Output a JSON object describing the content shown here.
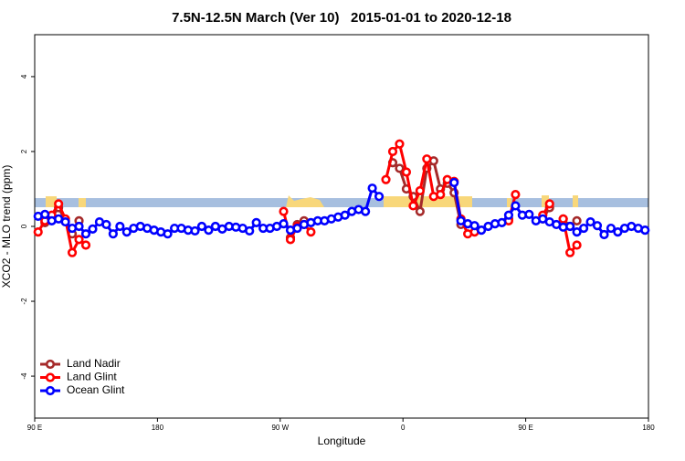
{
  "chart_data": {
    "type": "line",
    "title": "7.5N-12.5N March (Ver 10)   2015-01-01 to 2020-12-18",
    "x_label": "Longitude",
    "y_label": "XCO2 - MLO trend (ppm)",
    "xlim": [
      90,
      540
    ],
    "ylim": [
      -5.12,
      5.12
    ],
    "xticks": [
      {
        "value": 90,
        "label": "90 E"
      },
      180,
      {
        "value": 270,
        "label": "90 W"
      },
      {
        "value": 360,
        "label": "0"
      },
      {
        "value": 450,
        "label": "90 E"
      },
      {
        "value": 540,
        "label": "180"
      }
    ],
    "yticks": [
      -4,
      -2,
      0,
      2,
      4
    ],
    "legend": "bottom-left",
    "x": [
      92.5,
      97.5,
      102.5,
      107.5,
      112.5,
      117.5,
      122.5,
      127.5,
      132.5,
      137.5,
      142.5,
      147.5,
      152.5,
      157.5,
      162.5,
      167.5,
      172.5,
      177.5,
      182.5,
      187.5,
      192.5,
      197.5,
      202.5,
      207.5,
      212.5,
      217.5,
      222.5,
      227.5,
      232.5,
      237.5,
      242.5,
      247.5,
      252.5,
      257.5,
      262.5,
      267.5,
      272.5,
      277.5,
      282.5,
      287.5,
      292.5,
      297.5,
      302.5,
      307.5,
      312.5,
      317.5,
      322.5,
      327.5,
      332.5,
      337.5,
      342.5,
      347.5,
      352.5,
      357.5,
      362.5,
      367.5,
      372.5,
      377.5,
      382.5,
      387.5,
      392.5,
      397.5,
      402.5,
      407.5,
      412.5,
      417.5,
      422.5,
      427.5,
      432.5,
      437.5,
      442.5,
      447.5,
      452.5,
      457.5,
      462.5,
      467.5,
      472.5,
      477.5,
      482.5,
      487.5,
      492.5,
      497.5,
      502.5,
      507.5,
      512.5,
      517.5,
      522.5,
      527.5,
      532.5,
      537.5
    ],
    "series": [
      {
        "name": "Land Nadir",
        "color": "#a52a2a",
        "values": [
          null,
          0.1,
          0.25,
          0.5,
          0.15,
          -0.2,
          0.15,
          null,
          null,
          null,
          null,
          null,
          null,
          null,
          null,
          null,
          null,
          null,
          null,
          null,
          null,
          null,
          null,
          null,
          null,
          null,
          null,
          null,
          null,
          null,
          null,
          null,
          null,
          null,
          null,
          null,
          null,
          -0.3,
          0.05,
          0.15,
          null,
          null,
          null,
          null,
          null,
          null,
          null,
          null,
          null,
          null,
          null,
          null,
          1.7,
          1.55,
          1.0,
          0.8,
          0.4,
          1.55,
          1.75,
          1.0,
          1.15,
          0.9,
          0.05,
          null,
          null,
          null,
          null,
          null,
          null,
          0.2,
          null,
          null,
          null,
          null,
          0.2,
          0.5,
          null,
          0.2,
          0,
          0.15,
          null,
          null,
          null,
          null,
          null,
          null,
          null,
          null,
          null,
          null
        ]
      },
      {
        "name": "Land Glint",
        "color": "#ff0000",
        "values": [
          -0.15,
          0.15,
          0.3,
          0.6,
          0.2,
          -0.7,
          -0.35,
          -0.5,
          null,
          null,
          null,
          null,
          null,
          null,
          null,
          null,
          null,
          null,
          null,
          null,
          null,
          null,
          null,
          null,
          null,
          null,
          null,
          null,
          null,
          null,
          null,
          null,
          null,
          null,
          null,
          null,
          0.4,
          -0.35,
          0,
          0.05,
          -0.15,
          null,
          null,
          null,
          null,
          null,
          null,
          null,
          null,
          null,
          null,
          1.25,
          2.0,
          2.2,
          1.45,
          0.55,
          0.95,
          1.8,
          0.8,
          0.85,
          1.25,
          1.2,
          0.2,
          -0.2,
          -0.15,
          null,
          null,
          null,
          null,
          0.15,
          0.85,
          null,
          null,
          null,
          0.3,
          0.6,
          null,
          0.2,
          -0.7,
          -0.5,
          null,
          null,
          null,
          null,
          null,
          null,
          null,
          null,
          null,
          null
        ]
      },
      {
        "name": "Ocean Glint",
        "color": "#0000ff",
        "values": [
          0.27,
          0.32,
          0.15,
          0.2,
          0.12,
          -0.05,
          0,
          -0.2,
          -0.07,
          0.12,
          0.05,
          -0.2,
          0,
          -0.15,
          -0.05,
          0,
          -0.05,
          -0.1,
          -0.15,
          -0.2,
          -0.05,
          -0.05,
          -0.1,
          -0.12,
          0,
          -0.1,
          0,
          -0.07,
          0,
          -0.02,
          -0.05,
          -0.12,
          0.1,
          -0.05,
          -0.05,
          0,
          0.07,
          -0.1,
          -0.05,
          0.05,
          0.1,
          0.15,
          0.15,
          0.2,
          0.25,
          0.3,
          0.4,
          0.45,
          0.4,
          1.02,
          0.8,
          null,
          null,
          null,
          null,
          null,
          null,
          null,
          null,
          null,
          null,
          1.17,
          0.15,
          0.07,
          0.02,
          -0.1,
          0,
          0.07,
          0.1,
          0.3,
          0.55,
          0.3,
          0.32,
          0.15,
          0.2,
          0.12,
          0.05,
          -0.02,
          0,
          -0.15,
          -0.05,
          0.12,
          0.02,
          -0.22,
          -0.05,
          -0.15,
          -0.05,
          0,
          -0.05,
          -0.1
        ]
      }
    ]
  }
}
